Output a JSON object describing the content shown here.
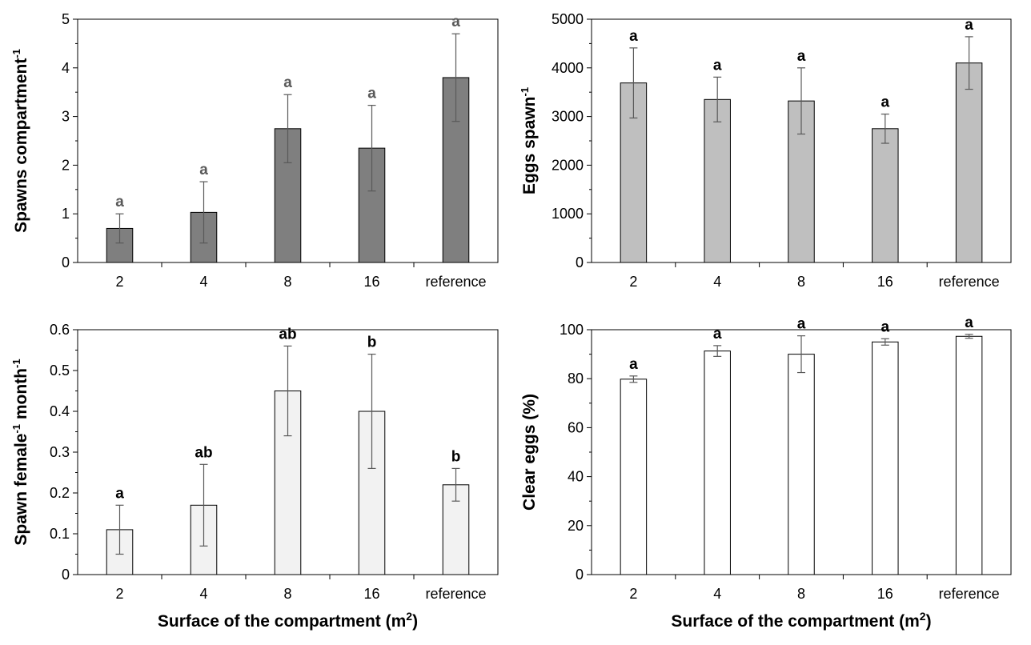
{
  "chart_data": [
    {
      "type": "bar",
      "categories": [
        "2",
        "4",
        "8",
        "16",
        "reference"
      ],
      "values": [
        0.7,
        1.03,
        2.75,
        2.35,
        3.8
      ],
      "error": [
        0.3,
        0.63,
        0.7,
        0.88,
        0.9
      ],
      "significance": [
        "a",
        "a",
        "a",
        "a",
        "a"
      ],
      "ylabel": "Spawns compartment",
      "ylabel_sup": "-1",
      "ylim": [
        0,
        5
      ],
      "yticks": [
        "0",
        "1",
        "2",
        "3",
        "4",
        "5"
      ],
      "ystep": 1,
      "xlabel": "",
      "xlabel_sup": "",
      "bar_color": "#7f7f7f",
      "label_color": "#595959"
    },
    {
      "type": "bar",
      "categories": [
        "2",
        "4",
        "8",
        "16",
        "reference"
      ],
      "values": [
        3690,
        3350,
        3320,
        2750,
        4100
      ],
      "error": [
        720,
        460,
        680,
        300,
        540
      ],
      "significance": [
        "a",
        "a",
        "a",
        "a",
        "a"
      ],
      "ylabel": "Eggs spawn",
      "ylabel_sup": "-1",
      "ylim": [
        0,
        5000
      ],
      "yticks": [
        "0",
        "1000",
        "2000",
        "3000",
        "4000",
        "5000"
      ],
      "ystep": 1000,
      "xlabel": "",
      "xlabel_sup": "",
      "bar_color": "#bfbfbf",
      "label_color": "#000000"
    },
    {
      "type": "bar",
      "categories": [
        "2",
        "4",
        "8",
        "16",
        "reference"
      ],
      "values": [
        0.11,
        0.17,
        0.45,
        0.4,
        0.22
      ],
      "error": [
        0.06,
        0.1,
        0.11,
        0.14,
        0.04
      ],
      "significance": [
        "a",
        "ab",
        "ab",
        "b",
        "b"
      ],
      "ylabel": "Spawn female",
      "ylabel_sup": "-1",
      "ylabel_mid": " month",
      "ylabel_sup2": "-1",
      "ylim": [
        0,
        0.6
      ],
      "yticks": [
        "0",
        "0.1",
        "0.2",
        "0.3",
        "0.4",
        "0.5",
        "0.6"
      ],
      "ystep": 0.1,
      "xlabel": "Surface of the compartment (m",
      "xlabel_sup": "2",
      "xlabel_end": ")",
      "bar_color": "#f2f2f2",
      "label_color": "#000000"
    },
    {
      "type": "bar",
      "categories": [
        "2",
        "4",
        "8",
        "16",
        "reference"
      ],
      "values": [
        79.8,
        91.3,
        90.0,
        95.0,
        97.3
      ],
      "error": [
        1.3,
        2.2,
        7.5,
        1.3,
        0.8
      ],
      "significance": [
        "a",
        "a",
        "a",
        "a",
        "a"
      ],
      "ylabel": "Clear eggs (%)",
      "ylabel_sup": "",
      "ylim": [
        0,
        100
      ],
      "yticks": [
        "0",
        "20",
        "40",
        "60",
        "80",
        "100"
      ],
      "ystep": 20,
      "xlabel": "Surface of the compartment (m",
      "xlabel_sup": "2",
      "xlabel_end": ")",
      "bar_color": "#ffffff",
      "label_color": "#000000"
    }
  ]
}
